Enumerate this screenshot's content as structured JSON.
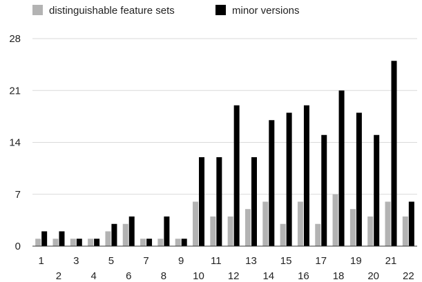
{
  "chart_data": {
    "type": "bar",
    "title": "",
    "xlabel": "",
    "ylabel": "",
    "categories": [
      "1",
      "2",
      "3",
      "4",
      "5",
      "6",
      "7",
      "8",
      "9",
      "10",
      "11",
      "12",
      "13",
      "14",
      "15",
      "16",
      "17",
      "18",
      "19",
      "20",
      "21",
      "22"
    ],
    "ylim": [
      0,
      28
    ],
    "yticks": [
      0,
      7,
      14,
      21,
      28
    ],
    "grid": true,
    "legend_position": "top-left",
    "series": [
      {
        "name": "distinguishable feature sets",
        "color": "#b3b3b3",
        "values": [
          1,
          1,
          1,
          1,
          2,
          3,
          1,
          1,
          1,
          6,
          4,
          4,
          5,
          6,
          3,
          6,
          3,
          7,
          5,
          4,
          6,
          4
        ]
      },
      {
        "name": "minor versions",
        "color": "#000000",
        "values": [
          2,
          2,
          1,
          1,
          3,
          4,
          1,
          4,
          1,
          12,
          12,
          19,
          12,
          17,
          18,
          19,
          15,
          21,
          18,
          15,
          25,
          6
        ]
      }
    ]
  }
}
